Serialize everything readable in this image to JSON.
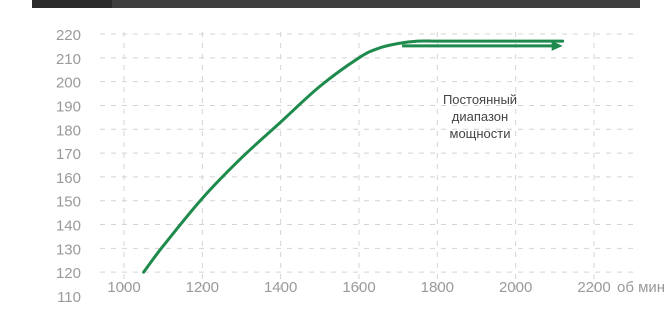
{
  "chart_data": {
    "type": "line",
    "x_unit": "об мин",
    "xlim": [
      1000,
      2200
    ],
    "ylim": [
      110,
      220
    ],
    "x_ticks": [
      1000,
      1200,
      1400,
      1600,
      1800,
      2000,
      2200
    ],
    "y_ticks": [
      110,
      120,
      130,
      140,
      150,
      160,
      170,
      180,
      190,
      200,
      210,
      220
    ],
    "grid": true,
    "series": [
      {
        "x": [
          1050,
          1100,
          1200,
          1300,
          1400,
          1500,
          1600,
          1650,
          1700,
          1750,
          1800,
          1900,
          2000,
          2100,
          2120
        ],
        "values": [
          120,
          131,
          151,
          168,
          183,
          198,
          210,
          214,
          216,
          217,
          217,
          217,
          217,
          217,
          217
        ],
        "color": "#1e8a4c"
      }
    ],
    "annotation": {
      "lines": [
        "Постоянный",
        "диапазон",
        "мощности"
      ],
      "arrow_from_x": 1710,
      "arrow_to_x": 2120,
      "arrow_y": 215
    }
  }
}
